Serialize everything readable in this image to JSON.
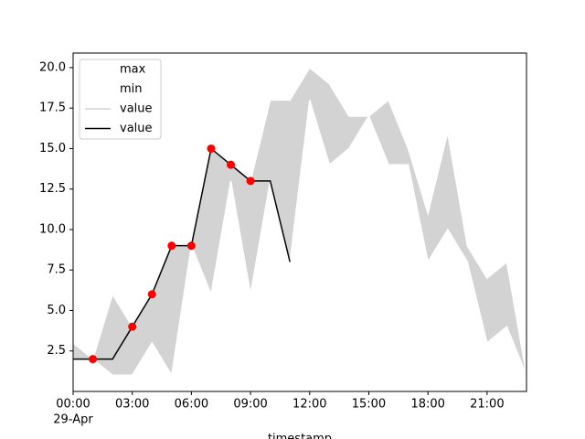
{
  "chart_data": {
    "type": "line",
    "xlabel": "timestamp",
    "date_label": "29-Apr",
    "x": [
      0,
      1,
      2,
      3,
      4,
      5,
      6,
      7,
      8,
      9,
      10,
      11,
      12,
      13,
      14,
      15,
      16,
      17,
      18,
      19,
      20,
      21,
      22,
      23
    ],
    "series": [
      {
        "name": "max",
        "color": "#ffffff",
        "values": [
          3,
          2,
          6,
          4,
          6,
          9,
          9,
          15,
          14,
          13,
          18,
          18,
          20,
          19,
          17,
          17,
          18,
          15,
          11,
          16,
          9,
          7,
          8,
          1
        ]
      },
      {
        "name": "min",
        "color": "#ffffff",
        "values": [
          2,
          2,
          1,
          1,
          3,
          1,
          9,
          6,
          13,
          6,
          13,
          8,
          18,
          14,
          15,
          17,
          14,
          14,
          8,
          10,
          8,
          3,
          4,
          1
        ]
      },
      {
        "name": "value",
        "color": "#d3d3d3",
        "fill_between": [
          0,
          1
        ]
      },
      {
        "name": "value",
        "color": "#000000",
        "values": [
          2,
          2,
          2,
          4,
          6,
          9,
          9,
          15,
          14,
          13,
          13,
          8,
          null,
          null,
          null,
          null,
          null,
          null,
          null,
          null,
          null,
          null,
          null,
          null
        ]
      }
    ],
    "points": {
      "color": "#ff0000",
      "x": [
        1,
        3,
        4,
        5,
        6,
        7,
        8,
        9
      ],
      "values": [
        2,
        4,
        6,
        9,
        9,
        15,
        14,
        13
      ]
    },
    "xlim": [
      0,
      23
    ],
    "ylim": [
      0,
      20.9
    ],
    "xticks": [
      {
        "value": 0,
        "label": "00:00"
      },
      {
        "value": 3,
        "label": "03:00"
      },
      {
        "value": 6,
        "label": "06:00"
      },
      {
        "value": 9,
        "label": "09:00"
      },
      {
        "value": 12,
        "label": "12:00"
      },
      {
        "value": 15,
        "label": "15:00"
      },
      {
        "value": 18,
        "label": "18:00"
      },
      {
        "value": 21,
        "label": "21:00"
      }
    ],
    "yticks": [
      {
        "value": 2.5,
        "label": "2.5"
      },
      {
        "value": 5,
        "label": "5.0"
      },
      {
        "value": 7.5,
        "label": "7.5"
      },
      {
        "value": 10,
        "label": "10.0"
      },
      {
        "value": 12.5,
        "label": "12.5"
      },
      {
        "value": 15,
        "label": "15.0"
      },
      {
        "value": 17.5,
        "label": "17.5"
      },
      {
        "value": 20,
        "label": "20.0"
      }
    ],
    "legend": "upper left"
  }
}
